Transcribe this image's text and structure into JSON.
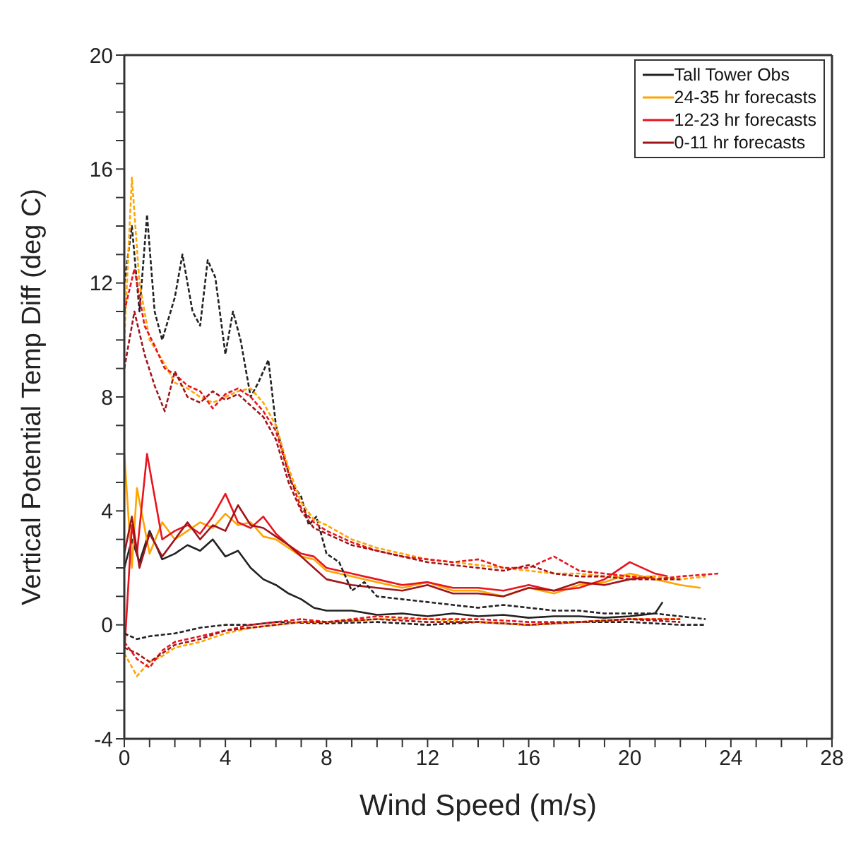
{
  "chart_data": {
    "type": "line",
    "xlabel": "Wind Speed (m/s)",
    "ylabel": "Vertical Potential Temp Diff (deg C)",
    "xlim": [
      0,
      28
    ],
    "ylim": [
      -4,
      20
    ],
    "xticks": [
      0,
      {
        "value": 1,
        "label": null
      },
      {
        "value": 2,
        "label": null
      },
      {
        "value": 3,
        "label": null
      },
      4,
      {
        "value": 5,
        "label": null
      },
      {
        "value": 6,
        "label": null
      },
      {
        "value": 7,
        "label": null
      },
      8,
      {
        "value": 9,
        "label": null
      },
      {
        "value": 10,
        "label": null
      },
      {
        "value": 11,
        "label": null
      },
      12,
      {
        "value": 13,
        "label": null
      },
      {
        "value": 14,
        "label": null
      },
      {
        "value": 15,
        "label": null
      },
      16,
      {
        "value": 17,
        "label": null
      },
      {
        "value": 18,
        "label": null
      },
      {
        "value": 19,
        "label": null
      },
      20,
      {
        "value": 21,
        "label": null
      },
      {
        "value": 22,
        "label": null
      },
      {
        "value": 23,
        "label": null
      },
      24,
      {
        "value": 25,
        "label": null
      },
      {
        "value": 26,
        "label": null
      },
      {
        "value": 27,
        "label": null
      },
      28
    ],
    "yticks": [
      -4,
      {
        "value": -3,
        "label": null
      },
      {
        "value": -2,
        "label": null
      },
      {
        "value": -1,
        "label": null
      },
      0,
      {
        "value": 1,
        "label": null
      },
      {
        "value": 2,
        "label": null
      },
      {
        "value": 3,
        "label": null
      },
      4,
      {
        "value": 5,
        "label": null
      },
      {
        "value": 6,
        "label": null
      },
      {
        "value": 7,
        "label": null
      },
      8,
      {
        "value": 9,
        "label": null
      },
      {
        "value": 10,
        "label": null
      },
      {
        "value": 11,
        "label": null
      },
      12,
      {
        "value": 13,
        "label": null
      },
      {
        "value": 14,
        "label": null
      },
      {
        "value": 15,
        "label": null
      },
      16,
      {
        "value": 17,
        "label": null
      },
      {
        "value": 18,
        "label": null
      },
      {
        "value": 19,
        "label": null
      },
      20
    ],
    "legend": "top right",
    "marker": "none",
    "line_style": "solid",
    "series": [
      {
        "name": "Tall Tower Obs",
        "color": "#222222",
        "x": [
          0,
          0.3,
          0.6,
          1,
          1.5,
          2,
          2.5,
          3,
          3.5,
          4,
          4.5,
          5,
          5.5,
          6,
          6.5,
          7,
          7.5,
          8,
          9,
          10,
          11,
          12,
          13,
          14,
          15,
          16,
          17,
          18,
          19,
          20,
          21,
          21.3
        ],
        "values": [
          2.0,
          3.0,
          2.2,
          3.3,
          2.3,
          2.5,
          2.8,
          2.6,
          3.0,
          2.4,
          2.6,
          2.0,
          1.6,
          1.4,
          1.1,
          0.9,
          0.6,
          0.5,
          0.5,
          0.35,
          0.4,
          0.3,
          0.4,
          0.3,
          0.35,
          0.25,
          0.3,
          0.3,
          0.25,
          0.3,
          0.4,
          0.8
        ]
      },
      {
        "name": "24-35 hr forecasts",
        "color": "#ffa500",
        "x": [
          0,
          0.3,
          0.5,
          1,
          1.5,
          2,
          2.5,
          3,
          3.5,
          4,
          4.5,
          5,
          5.5,
          6,
          6.5,
          7,
          7.5,
          8,
          9,
          10,
          11,
          12,
          13,
          14,
          15,
          16,
          17,
          18,
          19,
          20,
          21,
          22,
          22.8
        ],
        "values": [
          6.0,
          2.0,
          4.8,
          2.5,
          3.6,
          3.0,
          3.3,
          3.6,
          3.4,
          3.9,
          3.5,
          3.6,
          3.1,
          3.0,
          2.7,
          2.4,
          2.3,
          1.9,
          1.7,
          1.5,
          1.3,
          1.5,
          1.2,
          1.2,
          1.0,
          1.3,
          1.1,
          1.4,
          1.5,
          1.8,
          1.6,
          1.4,
          1.3
        ]
      },
      {
        "name": "12-23 hr forecasts",
        "color": "#e8141e",
        "x": [
          0,
          0.3,
          0.5,
          0.9,
          1.5,
          2,
          2.5,
          3,
          3.5,
          4,
          4.5,
          5,
          5.5,
          6,
          6.5,
          7,
          7.5,
          8,
          9,
          10,
          11,
          12,
          13,
          14,
          15,
          16,
          17,
          18,
          19,
          20,
          21,
          21.5
        ],
        "values": [
          -1.0,
          3.5,
          2.5,
          6.0,
          3.0,
          3.3,
          3.5,
          3.2,
          3.8,
          4.6,
          3.6,
          3.4,
          3.8,
          3.2,
          2.8,
          2.5,
          2.4,
          2.0,
          1.8,
          1.6,
          1.4,
          1.5,
          1.3,
          1.3,
          1.2,
          1.4,
          1.2,
          1.3,
          1.6,
          2.2,
          1.8,
          1.7
        ]
      },
      {
        "name": "0-11 hr forecasts",
        "color": "#a0151a",
        "x": [
          0,
          0.3,
          0.6,
          1,
          1.5,
          2,
          2.5,
          3,
          3.5,
          4,
          4.5,
          5,
          5.5,
          6,
          6.5,
          7,
          7.5,
          8,
          9,
          10,
          11,
          12,
          13,
          14,
          15,
          16,
          17,
          18,
          19,
          20,
          21
        ],
        "values": [
          2.5,
          3.8,
          2.0,
          3.2,
          2.4,
          3.0,
          3.6,
          3.0,
          3.5,
          3.3,
          4.2,
          3.5,
          3.4,
          3.1,
          2.8,
          2.4,
          2.0,
          1.6,
          1.4,
          1.3,
          1.2,
          1.4,
          1.1,
          1.1,
          1.0,
          1.3,
          1.2,
          1.5,
          1.4,
          1.6,
          1.7
        ]
      },
      {
        "color": "#222222",
        "line_style": "dashed",
        "x": [
          0,
          0.3,
          0.6,
          0.9,
          1.2,
          1.5,
          2,
          2.3,
          2.7,
          3,
          3.3,
          3.6,
          4,
          4.3,
          4.6,
          5,
          5.3,
          5.7,
          6,
          6.3,
          6.6,
          7,
          7.3,
          7.6,
          8,
          8.5,
          9,
          9.5,
          10,
          11,
          12,
          13,
          14,
          15,
          16,
          17,
          18,
          19,
          20,
          21,
          22,
          23
        ],
        "values": [
          12,
          14,
          11,
          14.4,
          11,
          10,
          11.5,
          13,
          11,
          10.5,
          12.8,
          12.2,
          9.5,
          11,
          10,
          8,
          8.5,
          9.3,
          7,
          6,
          5,
          4.5,
          3.5,
          3.8,
          2.5,
          2.2,
          1.2,
          1.5,
          1.0,
          0.9,
          0.8,
          0.7,
          0.6,
          0.7,
          0.6,
          0.5,
          0.5,
          0.4,
          0.4,
          0.4,
          0.3,
          0.2
        ]
      },
      {
        "color": "#222222",
        "line_style": "dashed",
        "x": [
          0,
          0.5,
          1,
          2,
          3,
          4,
          5,
          6,
          8,
          10,
          12,
          14,
          16,
          18,
          20,
          22,
          23
        ],
        "values": [
          -0.3,
          -0.5,
          -0.4,
          -0.3,
          -0.1,
          0.0,
          0.0,
          0.1,
          0.05,
          0.1,
          0.0,
          0.1,
          0.0,
          0.1,
          0.1,
          0.0,
          0.0
        ]
      },
      {
        "color": "#ffa500",
        "line_style": "dashed",
        "x": [
          0,
          0.3,
          0.6,
          1,
          1.5,
          2,
          2.5,
          3,
          3.5,
          4,
          4.5,
          5,
          5.5,
          6,
          6.5,
          7,
          7.5,
          8,
          9,
          10,
          11,
          12,
          13,
          14,
          15,
          16,
          17,
          18,
          19,
          20,
          21,
          22,
          23
        ],
        "values": [
          10,
          15.7,
          12,
          10,
          9.3,
          8.5,
          8.3,
          8.0,
          7.8,
          8.0,
          8.2,
          8.3,
          7.8,
          7.0,
          5.5,
          4.3,
          3.7,
          3.5,
          3.0,
          2.7,
          2.5,
          2.3,
          2.2,
          2.1,
          2.0,
          1.9,
          1.8,
          1.8,
          1.7,
          1.7,
          1.7,
          1.6,
          1.7
        ]
      },
      {
        "color": "#ffa500",
        "line_style": "dashed",
        "x": [
          0,
          0.5,
          1,
          1.5,
          2,
          3,
          4,
          5,
          6,
          7,
          8,
          10,
          12,
          14,
          16,
          18,
          20,
          22
        ],
        "values": [
          -1.0,
          -1.8,
          -1.3,
          -1.1,
          -0.8,
          -0.6,
          -0.3,
          -0.1,
          0.0,
          0.1,
          0.1,
          0.2,
          0.2,
          0.1,
          0.0,
          0.1,
          0.2,
          0.2
        ]
      },
      {
        "color": "#e8141e",
        "line_style": "dashed",
        "x": [
          0,
          0.4,
          0.8,
          1.2,
          1.6,
          2,
          2.5,
          3,
          3.5,
          4,
          4.5,
          5,
          5.5,
          6,
          6.5,
          7,
          7.5,
          8,
          9,
          10,
          11,
          12,
          13,
          14,
          15,
          16,
          17,
          18,
          19,
          20,
          21,
          22,
          23.5
        ],
        "values": [
          11,
          12.5,
          10.5,
          9.8,
          9.0,
          8.8,
          8.4,
          8.2,
          7.6,
          8.1,
          8.3,
          8.0,
          7.5,
          6.8,
          5.3,
          4.1,
          3.6,
          3.3,
          2.9,
          2.6,
          2.4,
          2.3,
          2.2,
          2.3,
          2.0,
          2.0,
          2.4,
          1.9,
          1.8,
          1.7,
          1.6,
          1.7,
          1.8
        ]
      },
      {
        "color": "#e8141e",
        "line_style": "dashed",
        "x": [
          0,
          0.5,
          1,
          1.5,
          2,
          3,
          4,
          5,
          6,
          7,
          8,
          10,
          12,
          14,
          16,
          18,
          20,
          22
        ],
        "values": [
          -0.6,
          -1.2,
          -1.5,
          -0.9,
          -0.6,
          -0.4,
          -0.2,
          0.0,
          0.1,
          0.2,
          0.1,
          0.3,
          0.2,
          0.2,
          0.1,
          0.1,
          0.2,
          0.2
        ]
      },
      {
        "color": "#a0151a",
        "line_style": "dashed",
        "x": [
          0,
          0.4,
          0.8,
          1.2,
          1.6,
          2,
          2.5,
          3,
          3.5,
          4,
          4.5,
          5,
          5.5,
          6,
          6.5,
          7,
          7.5,
          8,
          9,
          10,
          11,
          12,
          13,
          14,
          15,
          16,
          17,
          18,
          19,
          20,
          21,
          22
        ],
        "values": [
          9,
          11,
          9.5,
          8.4,
          7.5,
          8.9,
          8.0,
          7.8,
          8.2,
          7.9,
          8.1,
          7.7,
          7.3,
          6.5,
          5.0,
          4.0,
          3.4,
          3.2,
          2.8,
          2.6,
          2.4,
          2.2,
          2.1,
          2.0,
          1.9,
          2.1,
          1.8,
          1.7,
          1.7,
          1.6,
          1.6,
          1.6
        ]
      },
      {
        "color": "#a0151a",
        "line_style": "dashed",
        "x": [
          0,
          0.5,
          1,
          1.5,
          2,
          3,
          4,
          5,
          6,
          7,
          8,
          10,
          12,
          14,
          16,
          18,
          20,
          22
        ],
        "values": [
          -0.8,
          -1.0,
          -1.3,
          -1.0,
          -0.7,
          -0.5,
          -0.2,
          -0.1,
          0.0,
          0.1,
          0.1,
          0.2,
          0.1,
          0.1,
          0.0,
          0.1,
          0.2,
          0.1
        ]
      }
    ]
  }
}
